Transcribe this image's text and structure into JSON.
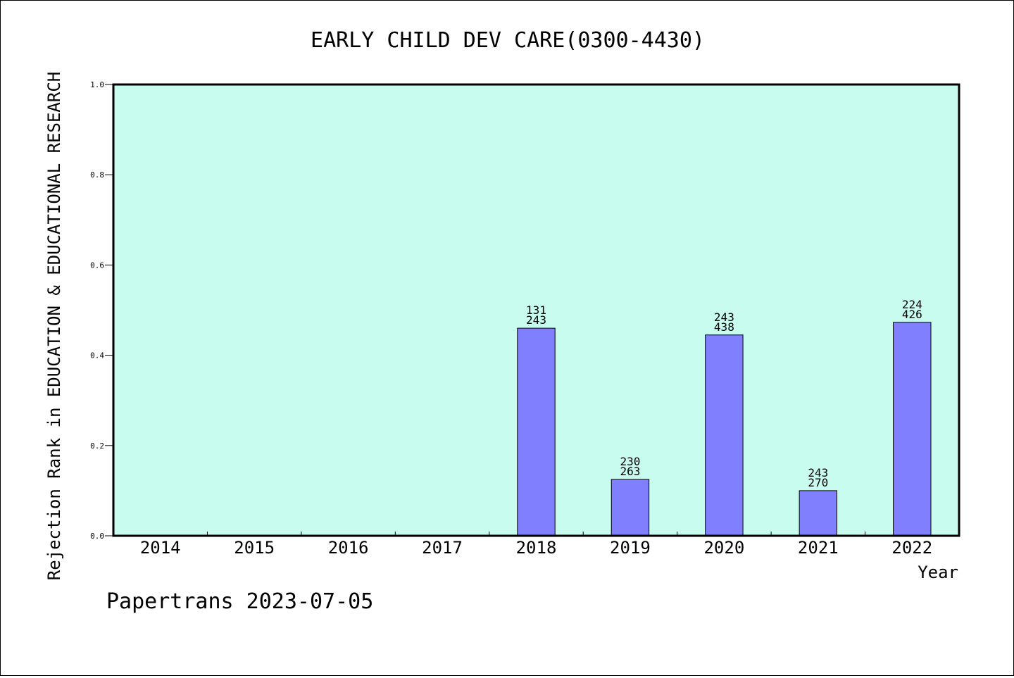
{
  "chart_data": {
    "type": "bar",
    "title": "EARLY CHILD DEV CARE(0300-4430)",
    "xlabel": "Year",
    "ylabel": "Rejection Rank in EDUCATION & EDUCATIONAL RESEARCH",
    "ylim": [
      0,
      1.0
    ],
    "yticks": [
      "0.0",
      "0.2",
      "0.4",
      "0.6",
      "0.8",
      "1.0"
    ],
    "categories": [
      "2014",
      "2015",
      "2016",
      "2017",
      "2018",
      "2019",
      "2020",
      "2021",
      "2022"
    ],
    "values": [
      null,
      null,
      null,
      null,
      0.46,
      0.125,
      0.445,
      0.1,
      0.473
    ],
    "bar_labels": [
      null,
      null,
      null,
      null,
      {
        "rank": "131",
        "total": "243"
      },
      {
        "rank": "230",
        "total": "263"
      },
      {
        "rank": "243",
        "total": "438"
      },
      {
        "rank": "243",
        "total": "270"
      },
      {
        "rank": "224",
        "total": "426"
      }
    ],
    "grid": false,
    "colors": {
      "plot_background": "#c8fcee",
      "bar_fill": "#8080ff",
      "bar_stroke": "#000000"
    }
  },
  "footer": {
    "credit": "Papertrans 2023-07-05"
  }
}
